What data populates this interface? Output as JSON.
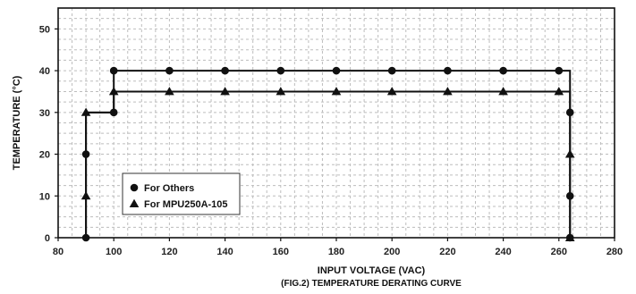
{
  "chart_data": {
    "type": "line",
    "title": "",
    "caption": "(FIG.2) TEMPERATURE DERATING CURVE",
    "xlabel": "INPUT VOLTAGE (VAC)",
    "ylabel": "TEMPERATURE (°C)",
    "xlim": [
      80,
      280
    ],
    "ylim": [
      0,
      55
    ],
    "xticks": [
      80,
      100,
      120,
      140,
      160,
      180,
      200,
      220,
      240,
      260,
      280
    ],
    "yticks": [
      0,
      10,
      20,
      30,
      40,
      50
    ],
    "grid": true,
    "legend_position": "bottom-left",
    "series": [
      {
        "name": "For Others",
        "marker": "circle",
        "color": "#111111",
        "points": [
          [
            90,
            0
          ],
          [
            90,
            20
          ],
          [
            90,
            30
          ],
          [
            100,
            30
          ],
          [
            100,
            40
          ],
          [
            120,
            40
          ],
          [
            140,
            40
          ],
          [
            160,
            40
          ],
          [
            180,
            40
          ],
          [
            200,
            40
          ],
          [
            220,
            40
          ],
          [
            240,
            40
          ],
          [
            260,
            40
          ],
          [
            264,
            40
          ],
          [
            264,
            30
          ],
          [
            264,
            10
          ],
          [
            264,
            0
          ]
        ],
        "marker_points": [
          [
            90,
            0
          ],
          [
            90,
            20
          ],
          [
            100,
            30
          ],
          [
            100,
            40
          ],
          [
            120,
            40
          ],
          [
            140,
            40
          ],
          [
            160,
            40
          ],
          [
            180,
            40
          ],
          [
            200,
            40
          ],
          [
            220,
            40
          ],
          [
            240,
            40
          ],
          [
            260,
            40
          ],
          [
            264,
            30
          ],
          [
            264,
            10
          ],
          [
            264,
            0
          ]
        ]
      },
      {
        "name": "For MPU250A-105",
        "marker": "triangle",
        "color": "#111111",
        "points": [
          [
            90,
            0
          ],
          [
            90,
            10
          ],
          [
            90,
            30
          ],
          [
            100,
            30
          ],
          [
            100,
            35
          ],
          [
            120,
            35
          ],
          [
            140,
            35
          ],
          [
            160,
            35
          ],
          [
            180,
            35
          ],
          [
            200,
            35
          ],
          [
            220,
            35
          ],
          [
            240,
            35
          ],
          [
            260,
            35
          ],
          [
            264,
            35
          ],
          [
            264,
            20
          ],
          [
            264,
            0
          ]
        ],
        "marker_points": [
          [
            90,
            10
          ],
          [
            90,
            30
          ],
          [
            100,
            35
          ],
          [
            120,
            35
          ],
          [
            140,
            35
          ],
          [
            160,
            35
          ],
          [
            180,
            35
          ],
          [
            200,
            35
          ],
          [
            220,
            35
          ],
          [
            240,
            35
          ],
          [
            260,
            35
          ],
          [
            264,
            20
          ],
          [
            264,
            0
          ]
        ]
      }
    ]
  }
}
